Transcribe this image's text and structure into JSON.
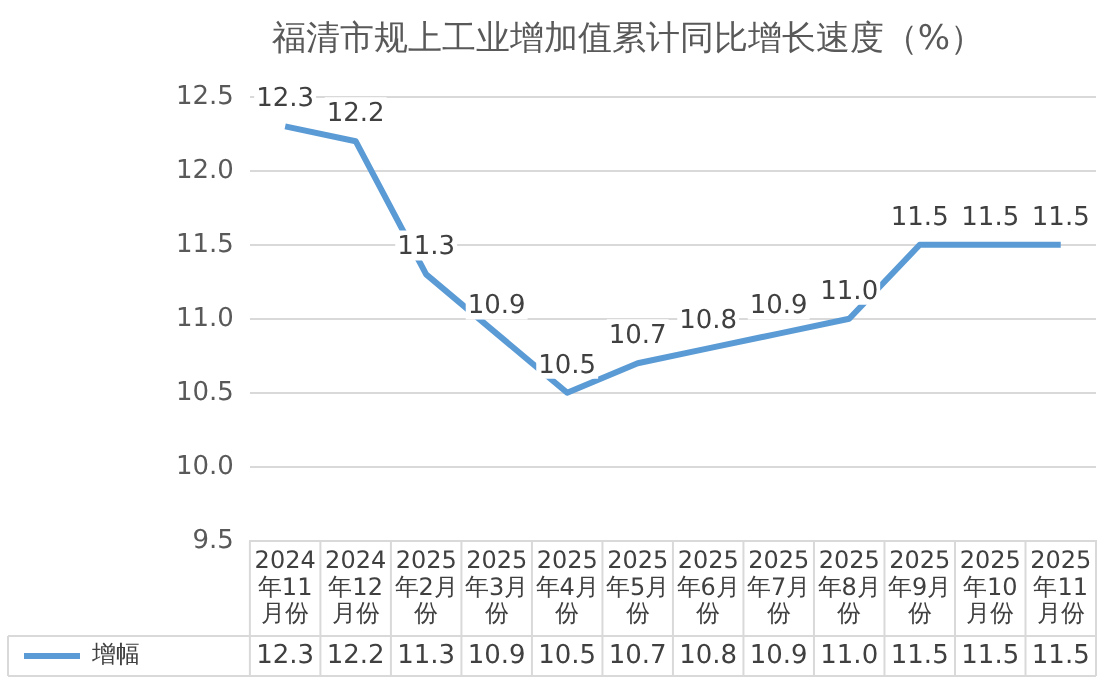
{
  "chart_data": {
    "type": "line",
    "title": "福清市规上工业增加值累计同比增长速度（%）",
    "categories": [
      "2024年11月份",
      "2024年12月份",
      "2025年2月份",
      "2025年3月份",
      "2025年4月份",
      "2025年5月份",
      "2025年6月份",
      "2025年7月份",
      "2025年8月份",
      "2025年9月份",
      "2025年10月份",
      "2025年11月份"
    ],
    "series": [
      {
        "name": "增幅",
        "color": "#5b9bd5",
        "values": [
          12.3,
          12.2,
          11.3,
          10.9,
          10.5,
          10.7,
          10.8,
          10.9,
          11.0,
          11.5,
          11.5,
          11.5
        ],
        "value_labels": [
          "12.3",
          "12.2",
          "11.3",
          "10.9",
          "10.5",
          "10.7",
          "10.8",
          "10.9",
          "11.0",
          "11.5",
          "11.5",
          "11.5"
        ]
      }
    ],
    "ylim": [
      9.5,
      12.5
    ],
    "yticks": [
      9.5,
      {
        "value": 10,
        "label": "10.0"
      },
      10.5,
      {
        "value": 11,
        "label": "11.0"
      },
      11.5,
      {
        "value": 12,
        "label": "12.0"
      },
      12.5
    ],
    "grid": "y",
    "legend": "bottom",
    "marker": "none",
    "line_style": "solid",
    "data_labels": true
  }
}
